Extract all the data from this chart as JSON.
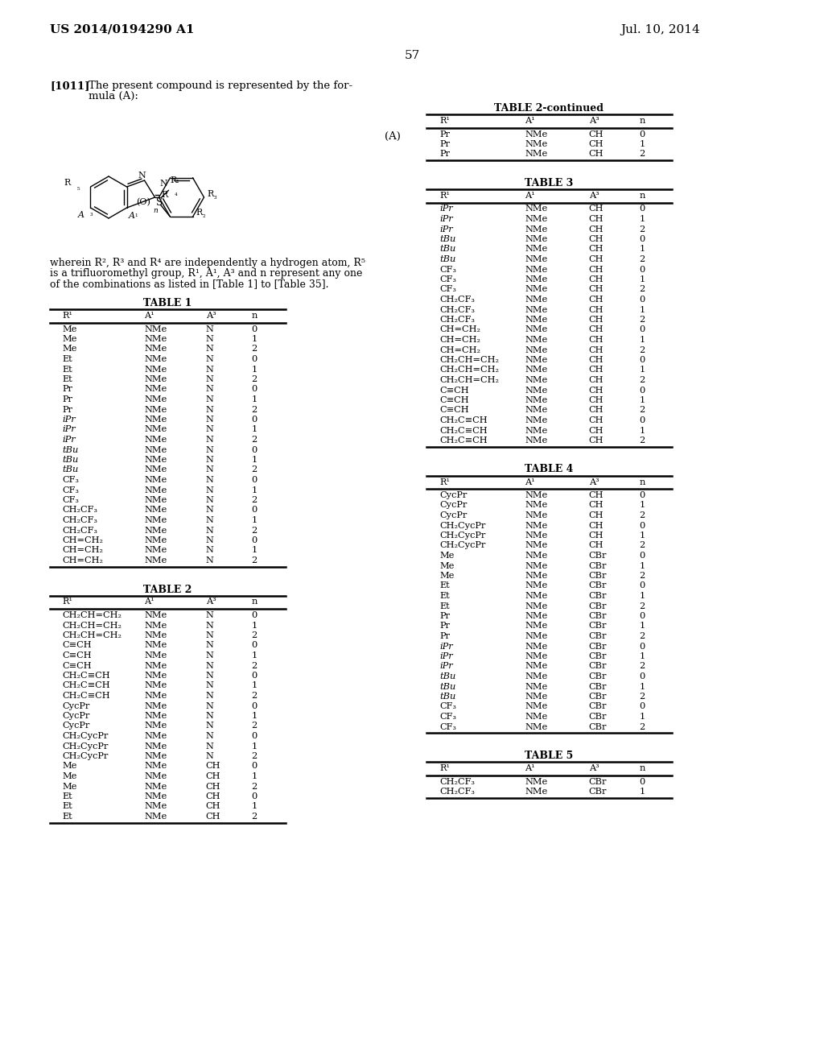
{
  "header_left": "US 2014/0194290 A1",
  "header_right": "Jul. 10, 2014",
  "page_number": "57",
  "background_color": "#ffffff",
  "text_color": "#000000",
  "table1_title": "TABLE 1",
  "table1_headers": [
    "R¹",
    "A¹",
    "A³",
    "n"
  ],
  "table1_rows": [
    [
      "Me",
      "NMe",
      "N",
      "0"
    ],
    [
      "Me",
      "NMe",
      "N",
      "1"
    ],
    [
      "Me",
      "NMe",
      "N",
      "2"
    ],
    [
      "Et",
      "NMe",
      "N",
      "0"
    ],
    [
      "Et",
      "NMe",
      "N",
      "1"
    ],
    [
      "Et",
      "NMe",
      "N",
      "2"
    ],
    [
      "Pr",
      "NMe",
      "N",
      "0"
    ],
    [
      "Pr",
      "NMe",
      "N",
      "1"
    ],
    [
      "Pr",
      "NMe",
      "N",
      "2"
    ],
    [
      "iPr",
      "NMe",
      "N",
      "0"
    ],
    [
      "iPr",
      "NMe",
      "N",
      "1"
    ],
    [
      "iPr",
      "NMe",
      "N",
      "2"
    ],
    [
      "tBu",
      "NMe",
      "N",
      "0"
    ],
    [
      "tBu",
      "NMe",
      "N",
      "1"
    ],
    [
      "tBu",
      "NMe",
      "N",
      "2"
    ],
    [
      "CF₃",
      "NMe",
      "N",
      "0"
    ],
    [
      "CF₃",
      "NMe",
      "N",
      "1"
    ],
    [
      "CF₃",
      "NMe",
      "N",
      "2"
    ],
    [
      "CH₂CF₃",
      "NMe",
      "N",
      "0"
    ],
    [
      "CH₂CF₃",
      "NMe",
      "N",
      "1"
    ],
    [
      "CH₂CF₃",
      "NMe",
      "N",
      "2"
    ],
    [
      "CH=CH₂",
      "NMe",
      "N",
      "0"
    ],
    [
      "CH=CH₂",
      "NMe",
      "N",
      "1"
    ],
    [
      "CH=CH₂",
      "NMe",
      "N",
      "2"
    ]
  ],
  "table2_title": "TABLE 2",
  "table2_headers": [
    "R¹",
    "A¹",
    "A³",
    "n"
  ],
  "table2_rows": [
    [
      "CH₂CH=CH₂",
      "NMe",
      "N",
      "0"
    ],
    [
      "CH₂CH=CH₂",
      "NMe",
      "N",
      "1"
    ],
    [
      "CH₂CH=CH₂",
      "NMe",
      "N",
      "2"
    ],
    [
      "C≡CH",
      "NMe",
      "N",
      "0"
    ],
    [
      "C≡CH",
      "NMe",
      "N",
      "1"
    ],
    [
      "C≡CH",
      "NMe",
      "N",
      "2"
    ],
    [
      "CH₂C≡CH",
      "NMe",
      "N",
      "0"
    ],
    [
      "CH₂C≡CH",
      "NMe",
      "N",
      "1"
    ],
    [
      "CH₂C≡CH",
      "NMe",
      "N",
      "2"
    ],
    [
      "CycPr",
      "NMe",
      "N",
      "0"
    ],
    [
      "CycPr",
      "NMe",
      "N",
      "1"
    ],
    [
      "CycPr",
      "NMe",
      "N",
      "2"
    ],
    [
      "CH₂CycPr",
      "NMe",
      "N",
      "0"
    ],
    [
      "CH₂CycPr",
      "NMe",
      "N",
      "1"
    ],
    [
      "CH₂CycPr",
      "NMe",
      "N",
      "2"
    ],
    [
      "Me",
      "NMe",
      "CH",
      "0"
    ],
    [
      "Me",
      "NMe",
      "CH",
      "1"
    ],
    [
      "Me",
      "NMe",
      "CH",
      "2"
    ],
    [
      "Et",
      "NMe",
      "CH",
      "0"
    ],
    [
      "Et",
      "NMe",
      "CH",
      "1"
    ],
    [
      "Et",
      "NMe",
      "CH",
      "2"
    ]
  ],
  "table2cont_title": "TABLE 2-continued",
  "table2cont_headers": [
    "R¹",
    "A¹",
    "A³",
    "n"
  ],
  "table2cont_rows": [
    [
      "Pr",
      "NMe",
      "CH",
      "0"
    ],
    [
      "Pr",
      "NMe",
      "CH",
      "1"
    ],
    [
      "Pr",
      "NMe",
      "CH",
      "2"
    ]
  ],
  "table3_title": "TABLE 3",
  "table3_headers": [
    "R¹",
    "A¹",
    "A³",
    "n"
  ],
  "table3_rows": [
    [
      "iPr",
      "NMe",
      "CH",
      "0"
    ],
    [
      "iPr",
      "NMe",
      "CH",
      "1"
    ],
    [
      "iPr",
      "NMe",
      "CH",
      "2"
    ],
    [
      "tBu",
      "NMe",
      "CH",
      "0"
    ],
    [
      "tBu",
      "NMe",
      "CH",
      "1"
    ],
    [
      "tBu",
      "NMe",
      "CH",
      "2"
    ],
    [
      "CF₃",
      "NMe",
      "CH",
      "0"
    ],
    [
      "CF₃",
      "NMe",
      "CH",
      "1"
    ],
    [
      "CF₃",
      "NMe",
      "CH",
      "2"
    ],
    [
      "CH₂CF₃",
      "NMe",
      "CH",
      "0"
    ],
    [
      "CH₂CF₃",
      "NMe",
      "CH",
      "1"
    ],
    [
      "CH₂CF₃",
      "NMe",
      "CH",
      "2"
    ],
    [
      "CH=CH₂",
      "NMe",
      "CH",
      "0"
    ],
    [
      "CH=CH₂",
      "NMe",
      "CH",
      "1"
    ],
    [
      "CH=CH₂",
      "NMe",
      "CH",
      "2"
    ],
    [
      "CH₂CH=CH₂",
      "NMe",
      "CH",
      "0"
    ],
    [
      "CH₂CH=CH₂",
      "NMe",
      "CH",
      "1"
    ],
    [
      "CH₂CH=CH₂",
      "NMe",
      "CH",
      "2"
    ],
    [
      "C≡CH",
      "NMe",
      "CH",
      "0"
    ],
    [
      "C≡CH",
      "NMe",
      "CH",
      "1"
    ],
    [
      "C≡CH",
      "NMe",
      "CH",
      "2"
    ],
    [
      "CH₂C≡CH",
      "NMe",
      "CH",
      "0"
    ],
    [
      "CH₂C≡CH",
      "NMe",
      "CH",
      "1"
    ],
    [
      "CH₂C≡CH",
      "NMe",
      "CH",
      "2"
    ]
  ],
  "table4_title": "TABLE 4",
  "table4_headers": [
    "R¹",
    "A¹",
    "A³",
    "n"
  ],
  "table4_rows": [
    [
      "CycPr",
      "NMe",
      "CH",
      "0"
    ],
    [
      "CycPr",
      "NMe",
      "CH",
      "1"
    ],
    [
      "CycPr",
      "NMe",
      "CH",
      "2"
    ],
    [
      "CH₂CycPr",
      "NMe",
      "CH",
      "0"
    ],
    [
      "CH₂CycPr",
      "NMe",
      "CH",
      "1"
    ],
    [
      "CH₂CycPr",
      "NMe",
      "CH",
      "2"
    ],
    [
      "Me",
      "NMe",
      "CBr",
      "0"
    ],
    [
      "Me",
      "NMe",
      "CBr",
      "1"
    ],
    [
      "Me",
      "NMe",
      "CBr",
      "2"
    ],
    [
      "Et",
      "NMe",
      "CBr",
      "0"
    ],
    [
      "Et",
      "NMe",
      "CBr",
      "1"
    ],
    [
      "Et",
      "NMe",
      "CBr",
      "2"
    ],
    [
      "Pr",
      "NMe",
      "CBr",
      "0"
    ],
    [
      "Pr",
      "NMe",
      "CBr",
      "1"
    ],
    [
      "Pr",
      "NMe",
      "CBr",
      "2"
    ],
    [
      "iPr",
      "NMe",
      "CBr",
      "0"
    ],
    [
      "iPr",
      "NMe",
      "CBr",
      "1"
    ],
    [
      "iPr",
      "NMe",
      "CBr",
      "2"
    ],
    [
      "tBu",
      "NMe",
      "CBr",
      "0"
    ],
    [
      "tBu",
      "NMe",
      "CBr",
      "1"
    ],
    [
      "tBu",
      "NMe",
      "CBr",
      "2"
    ],
    [
      "CF₃",
      "NMe",
      "CBr",
      "0"
    ],
    [
      "CF₃",
      "NMe",
      "CBr",
      "1"
    ],
    [
      "CF₃",
      "NMe",
      "CBr",
      "2"
    ]
  ],
  "table5_title": "TABLE 5",
  "table5_headers": [
    "R¹",
    "A¹",
    "A³",
    "n"
  ],
  "table5_rows": [
    [
      "CH₂CF₃",
      "NMe",
      "CBr",
      "0"
    ],
    [
      "CH₂CF₃",
      "NMe",
      "CBr",
      "1"
    ]
  ]
}
